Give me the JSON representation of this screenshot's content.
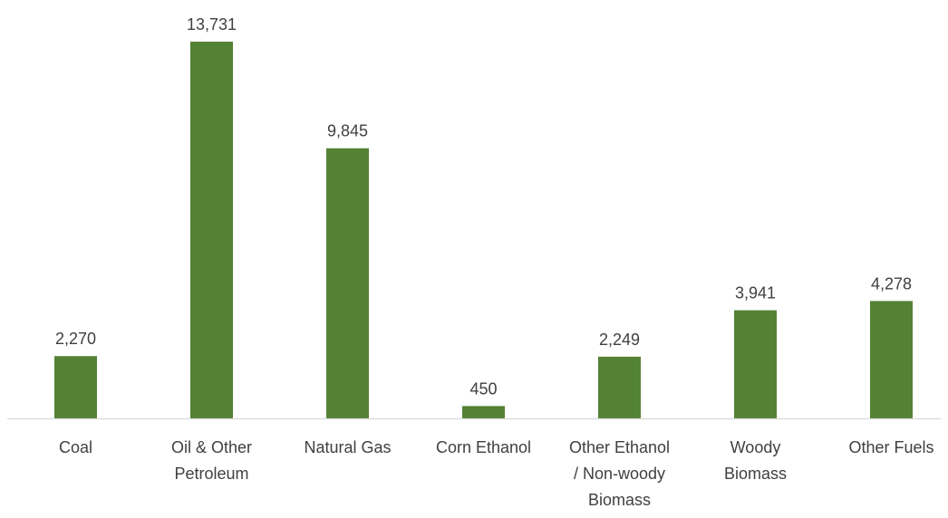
{
  "chart_data": {
    "type": "bar",
    "title": "",
    "xlabel": "",
    "ylabel": "",
    "categories": [
      [
        "Coal"
      ],
      [
        "Oil & Other",
        "Petroleum"
      ],
      [
        "Natural Gas"
      ],
      [
        "Corn Ethanol"
      ],
      [
        "Other Ethanol",
        "/ Non-woody",
        "Biomass"
      ],
      [
        "Woody",
        "Biomass"
      ],
      [
        "Other Fuels"
      ]
    ],
    "values": [
      2270,
      13731,
      9845,
      450,
      2249,
      3941,
      4278
    ],
    "data_labels": [
      "2,270",
      "13,731",
      "9,845",
      "450",
      "2,249",
      "3,941",
      "4,278"
    ],
    "ylim": [
      0,
      13731
    ],
    "grid": false,
    "legend": "none",
    "bar_color": "#548235",
    "axis_color": "#d9d9d9",
    "text_color": "#404040"
  }
}
